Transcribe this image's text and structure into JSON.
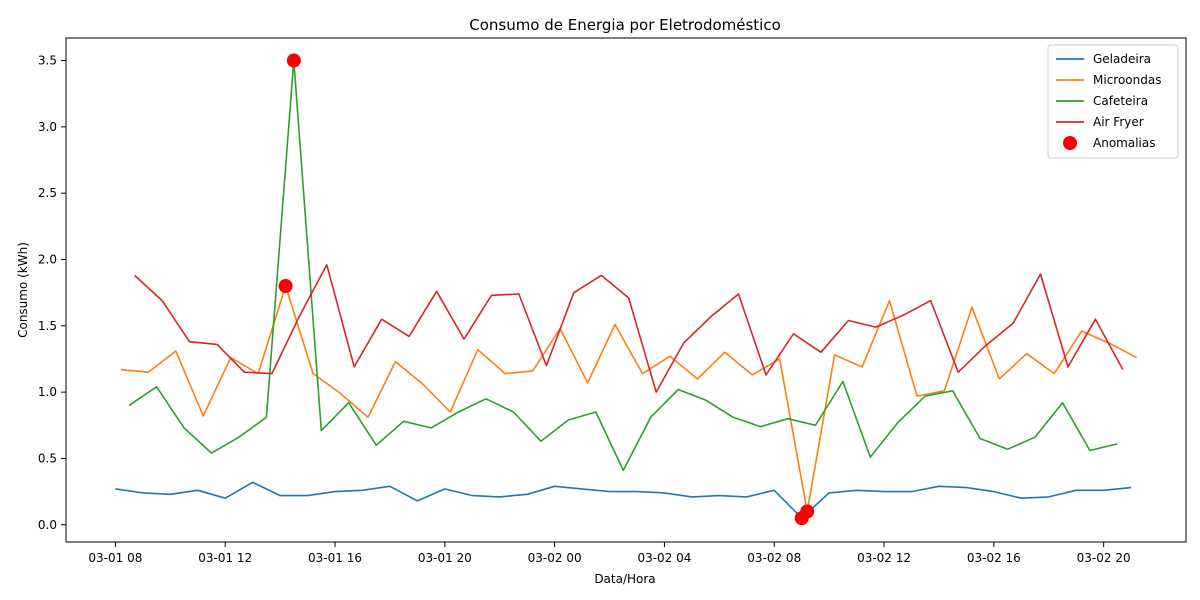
{
  "chart_data": {
    "type": "line",
    "title": "Consumo de Energia por Eletrodoméstico",
    "xlabel": "Data/Hora",
    "ylabel": "Consumo (kWh)",
    "x_ticks": [
      {
        "value": 8,
        "label": "03-01 08"
      },
      {
        "value": 12,
        "label": "03-01 12"
      },
      {
        "value": 16,
        "label": "03-01 16"
      },
      {
        "value": 20,
        "label": "03-01 20"
      },
      {
        "value": 24,
        "label": "03-02 00"
      },
      {
        "value": 28,
        "label": "03-02 04"
      },
      {
        "value": 32,
        "label": "03-02 08"
      },
      {
        "value": 36,
        "label": "03-02 12"
      },
      {
        "value": 40,
        "label": "03-02 16"
      },
      {
        "value": 44,
        "label": "03-02 20"
      }
    ],
    "y_ticks": [
      0.0,
      0.5,
      1.0,
      1.5,
      2.0,
      2.5,
      3.0,
      3.5
    ],
    "y_tick_labels": [
      "0.0",
      "0.5",
      "1.0",
      "1.5",
      "2.0",
      "2.5",
      "3.0",
      "3.5"
    ],
    "xlim": [
      6.2,
      47.0
    ],
    "ylim": [
      -0.13,
      3.67
    ],
    "legend_position": "top-right",
    "series": [
      {
        "name": "Geladeira",
        "color": "#1f77b4",
        "x": [
          8.0,
          9.0,
          10.0,
          11.0,
          12.0,
          13.0,
          14.0,
          15.0,
          16.0,
          17.0,
          18.0,
          19.0,
          20.0,
          21.0,
          22.0,
          23.0,
          24.0,
          25.0,
          26.0,
          27.0,
          28.0,
          29.0,
          30.0,
          31.0,
          32.0,
          33.0,
          34.0,
          35.0,
          36.0,
          37.0,
          38.0,
          39.0,
          40.0,
          41.0,
          42.0,
          43.0,
          44.0,
          45.0
        ],
        "y": [
          0.27,
          0.24,
          0.23,
          0.26,
          0.2,
          0.32,
          0.22,
          0.22,
          0.25,
          0.26,
          0.29,
          0.18,
          0.27,
          0.22,
          0.21,
          0.23,
          0.29,
          0.27,
          0.25,
          0.25,
          0.24,
          0.21,
          0.22,
          0.21,
          0.26,
          0.05,
          0.24,
          0.26,
          0.25,
          0.25,
          0.29,
          0.28,
          0.25,
          0.2,
          0.21,
          0.26,
          0.26,
          0.28
        ]
      },
      {
        "name": "Microondas",
        "color": "#ff7f0e",
        "x": [
          8.2,
          9.2,
          10.2,
          11.2,
          12.2,
          13.2,
          14.2,
          15.2,
          16.2,
          17.2,
          18.2,
          19.2,
          20.2,
          21.2,
          22.2,
          23.2,
          24.2,
          25.2,
          26.2,
          27.2,
          28.2,
          29.2,
          30.2,
          31.2,
          32.2,
          33.2,
          34.2,
          35.2,
          36.2,
          37.2,
          38.2,
          39.2,
          40.2,
          41.2,
          42.2,
          43.2,
          44.2,
          45.2
        ],
        "y": [
          1.17,
          1.15,
          1.31,
          0.82,
          1.26,
          1.14,
          1.8,
          1.14,
          0.99,
          0.81,
          1.23,
          1.06,
          0.85,
          1.32,
          1.14,
          1.16,
          1.48,
          1.07,
          1.51,
          1.14,
          1.27,
          1.1,
          1.3,
          1.13,
          1.25,
          0.1,
          1.28,
          1.19,
          1.69,
          0.97,
          1.01,
          1.64,
          1.1,
          1.29,
          1.14,
          1.46,
          1.37,
          1.26
        ]
      },
      {
        "name": "Cafeteira",
        "color": "#2ca02c",
        "x": [
          8.5,
          9.5,
          10.5,
          11.5,
          12.5,
          13.5,
          14.5,
          15.5,
          16.5,
          17.5,
          18.5,
          19.5,
          20.5,
          21.5,
          22.5,
          23.5,
          24.5,
          25.5,
          26.5,
          27.5,
          28.5,
          29.5,
          30.5,
          31.5,
          32.5,
          33.5,
          34.5,
          35.5,
          36.5,
          37.5,
          38.5,
          39.5,
          40.5,
          41.5,
          42.5,
          43.5,
          44.5
        ],
        "y": [
          0.9,
          1.04,
          0.73,
          0.54,
          0.66,
          0.81,
          3.5,
          0.71,
          0.92,
          0.6,
          0.78,
          0.73,
          0.85,
          0.95,
          0.85,
          0.63,
          0.79,
          0.85,
          0.41,
          0.81,
          1.02,
          0.94,
          0.81,
          0.74,
          0.8,
          0.75,
          1.08,
          0.51,
          0.77,
          0.97,
          1.01,
          0.65,
          0.57,
          0.66,
          0.92,
          0.56,
          0.61
        ]
      },
      {
        "name": "Air Fryer",
        "color": "#d62728",
        "x": [
          8.7,
          9.7,
          10.7,
          11.7,
          12.7,
          13.7,
          14.7,
          15.7,
          16.7,
          17.7,
          18.7,
          19.7,
          20.7,
          21.7,
          22.7,
          23.7,
          24.7,
          25.7,
          26.7,
          27.7,
          28.7,
          29.7,
          30.7,
          31.7,
          32.7,
          33.7,
          34.7,
          35.7,
          36.7,
          37.7,
          38.7,
          39.7,
          40.7,
          41.7,
          42.7,
          43.7,
          44.7
        ],
        "y": [
          1.88,
          1.69,
          1.38,
          1.36,
          1.15,
          1.14,
          1.57,
          1.96,
          1.19,
          1.55,
          1.42,
          1.76,
          1.4,
          1.73,
          1.74,
          1.2,
          1.75,
          1.88,
          1.71,
          1.0,
          1.37,
          1.57,
          1.74,
          1.13,
          1.44,
          1.3,
          1.54,
          1.49,
          1.58,
          1.69,
          1.15,
          1.35,
          1.52,
          1.89,
          1.19,
          1.55,
          1.17
        ]
      }
    ],
    "anomalies": {
      "name": "Anomalias",
      "color": "#ff0000",
      "points": [
        {
          "x": 14.5,
          "y": 3.5
        },
        {
          "x": 14.2,
          "y": 1.8
        },
        {
          "x": 33.2,
          "y": 0.1
        },
        {
          "x": 33.0,
          "y": 0.05
        }
      ]
    }
  }
}
